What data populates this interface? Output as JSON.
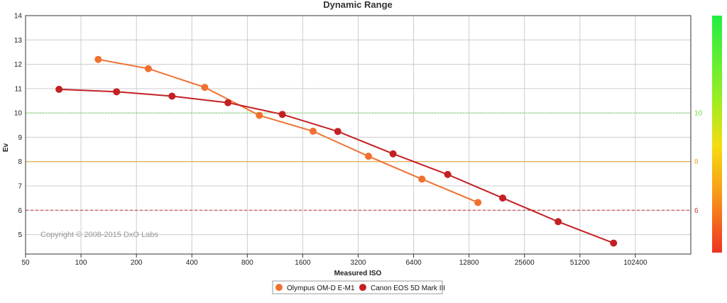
{
  "chart_data": {
    "type": "line",
    "title": "Dynamic Range",
    "xlabel": "Measured ISO",
    "ylabel": "Ev",
    "x_scale": "log2",
    "xlim": [
      50,
      204800
    ],
    "ylim": [
      4.2,
      14
    ],
    "x_ticks": [
      50,
      100,
      200,
      400,
      800,
      1600,
      3200,
      6400,
      12800,
      25600,
      51200,
      102400
    ],
    "x_tick_labels": [
      "50",
      "100",
      "200",
      "400",
      "800",
      "1600",
      "3200",
      "6400",
      "12800",
      "25600",
      "51200",
      "102400"
    ],
    "y_ticks": [
      5,
      6,
      7,
      8,
      9,
      10,
      11,
      12,
      13,
      14
    ],
    "y_tick_labels": [
      "5",
      "6",
      "7",
      "8",
      "9",
      "10",
      "11",
      "12",
      "13",
      "14"
    ],
    "grid": true,
    "legend": "bottom-center",
    "reference_lines": [
      {
        "value": 10,
        "label": "10",
        "color": "#66dd44",
        "style": "dotted"
      },
      {
        "value": 8,
        "label": "8",
        "color": "#f0a030",
        "style": "solid"
      },
      {
        "value": 6,
        "label": "6",
        "color": "#cc3333",
        "style": "dashed"
      }
    ],
    "series": [
      {
        "name": "Olympus OM-D E-M1",
        "color": "#f07030",
        "x": [
          124,
          232,
          470,
          930,
          1820,
          3640,
          7100,
          14300
        ],
        "y": [
          12.2,
          11.82,
          11.05,
          9.9,
          9.25,
          8.22,
          7.28,
          6.32
        ]
      },
      {
        "name": "Canon EOS 5D Mark III",
        "color": "#c42024",
        "x": [
          76,
          156,
          312,
          628,
          1240,
          2480,
          4950,
          9800,
          19500,
          39000,
          78000
        ],
        "y": [
          10.97,
          10.87,
          10.69,
          10.42,
          9.94,
          9.24,
          8.32,
          7.47,
          6.5,
          5.53,
          4.65
        ]
      }
    ],
    "copyright": "Copyright © 2008-2015 DxO Labs",
    "colorbar_labels": [
      "10",
      "8",
      "6"
    ]
  }
}
